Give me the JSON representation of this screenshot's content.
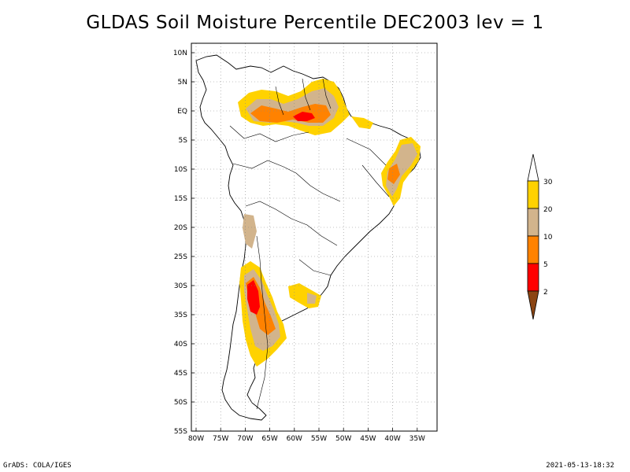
{
  "title": "GLDAS Soil Moisture Percentile DEC2003 lev = 1",
  "footer_left": "GrADS: COLA/IGES",
  "footer_right": "2021-05-13-18:32",
  "map": {
    "lon_range": [
      -80,
      -30
    ],
    "lat_range": [
      -55,
      10
    ],
    "lat_ticks": [
      {
        "value": 10,
        "label": "10N"
      },
      {
        "value": 5,
        "label": "5N"
      },
      {
        "value": 0,
        "label": "EQ"
      },
      {
        "value": -5,
        "label": "5S"
      },
      {
        "value": -10,
        "label": "10S"
      },
      {
        "value": -15,
        "label": "15S"
      },
      {
        "value": -20,
        "label": "20S"
      },
      {
        "value": -25,
        "label": "25S"
      },
      {
        "value": -30,
        "label": "30S"
      },
      {
        "value": -35,
        "label": "35S"
      },
      {
        "value": -40,
        "label": "40S"
      },
      {
        "value": -45,
        "label": "45S"
      },
      {
        "value": -50,
        "label": "50S"
      },
      {
        "value": -55,
        "label": "55S"
      }
    ],
    "lon_ticks": [
      {
        "value": -80,
        "label": "80W"
      },
      {
        "value": -75,
        "label": "75W"
      },
      {
        "value": -70,
        "label": "70W"
      },
      {
        "value": -65,
        "label": "65W"
      },
      {
        "value": -60,
        "label": "60W"
      },
      {
        "value": -55,
        "label": "55W"
      },
      {
        "value": -50,
        "label": "50W"
      },
      {
        "value": -45,
        "label": "45W"
      },
      {
        "value": -40,
        "label": "40W"
      },
      {
        "value": -35,
        "label": "35W"
      }
    ],
    "grid": "dotted",
    "land_color": "#ffffff",
    "outline_color": "#000000"
  },
  "colorbar": {
    "placement": "right",
    "labels": [
      "30",
      "20",
      "10",
      "5",
      "2"
    ],
    "colors": {
      "above_30": "#ffffff",
      "20_30": "#ffd200",
      "10_20": "#d2b48c",
      "5_10": "#ff8200",
      "2_5": "#ff0000",
      "below_2": "#8b4513"
    }
  }
}
